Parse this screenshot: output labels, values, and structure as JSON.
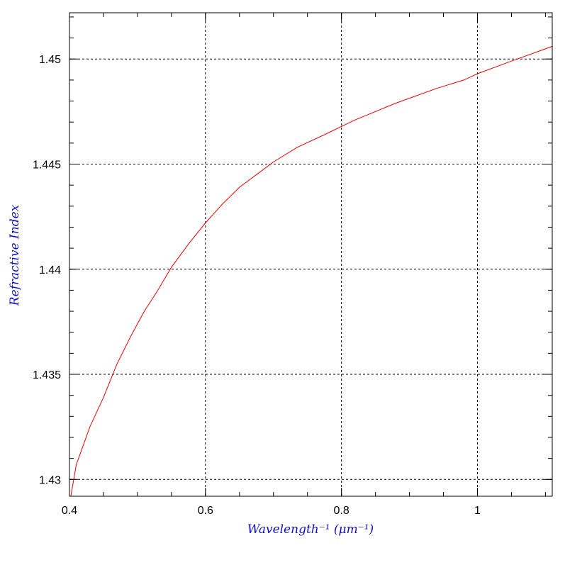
{
  "chart_data": {
    "type": "line",
    "title": "",
    "xlabel": "Wavelength⁻¹ (μm⁻¹)",
    "ylabel": "Refractive Index",
    "xlim": [
      0.4,
      1.11
    ],
    "ylim": [
      1.4292,
      1.4522
    ],
    "x_ticks": [
      0.4,
      0.6,
      0.8,
      1.0
    ],
    "x_tick_labels": [
      "0.4",
      "0.6",
      "0.8",
      "1"
    ],
    "x_minor_step": 0.05,
    "y_ticks": [
      1.43,
      1.435,
      1.44,
      1.445,
      1.45
    ],
    "y_tick_labels": [
      "1.43",
      "1.435",
      "1.44",
      "1.445",
      "1.45"
    ],
    "y_minor_step": 0.001,
    "grid": true,
    "legend": "none",
    "colors": {
      "line": "#e00000",
      "axis_title": "#1010c8"
    },
    "series": [
      {
        "x": [
          0.402,
          0.41,
          0.43,
          0.45,
          0.47,
          0.49,
          0.51,
          0.53,
          0.55,
          0.575,
          0.6,
          0.625,
          0.65,
          0.675,
          0.7,
          0.735,
          0.775,
          0.82,
          0.88,
          0.94,
          0.98,
          1.0,
          1.05,
          1.11
        ],
        "values": [
          1.4292,
          1.4307,
          1.4325,
          1.4339,
          1.4355,
          1.4368,
          1.438,
          1.439,
          1.4401,
          1.4412,
          1.4422,
          1.4431,
          1.4439,
          1.4445,
          1.4451,
          1.4458,
          1.4464,
          1.4471,
          1.4479,
          1.4486,
          1.449,
          1.4493,
          1.4499,
          1.4506
        ]
      }
    ]
  }
}
